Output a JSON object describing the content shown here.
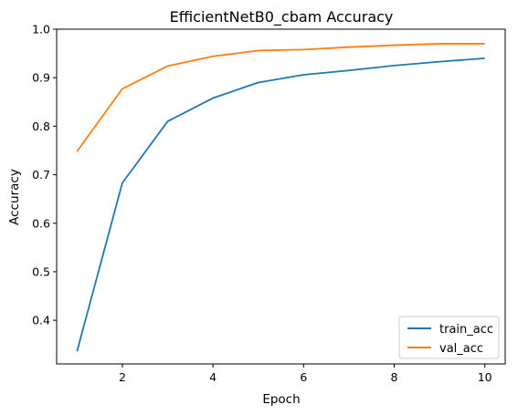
{
  "chart_data": {
    "type": "line",
    "title": "EfficientNetB0_cbam Accuracy",
    "xlabel": "Epoch",
    "ylabel": "Accuracy",
    "xlim": [
      0.55,
      10.45
    ],
    "ylim": [
      0.31,
      1.0
    ],
    "xticks": [
      2,
      4,
      6,
      8,
      10
    ],
    "yticks": [
      0.4,
      0.5,
      0.6,
      0.7,
      0.8,
      0.9,
      1.0
    ],
    "yticks_labels": [
      "0.4",
      "0.5",
      "0.6",
      "0.7",
      "0.8",
      "0.9",
      "1.0"
    ],
    "grid": false,
    "legend_position": "lower-right",
    "x": [
      1,
      2,
      3,
      4,
      5,
      6,
      7,
      8,
      9,
      10
    ],
    "series": [
      {
        "name": "train_acc",
        "color": "#1f77b4",
        "values": [
          0.336,
          0.683,
          0.81,
          0.858,
          0.89,
          0.906,
          0.915,
          0.925,
          0.933,
          0.94
        ]
      },
      {
        "name": "val_acc",
        "color": "#ff7f0e",
        "values": [
          0.748,
          0.877,
          0.924,
          0.944,
          0.956,
          0.958,
          0.963,
          0.967,
          0.97,
          0.97
        ]
      }
    ]
  }
}
